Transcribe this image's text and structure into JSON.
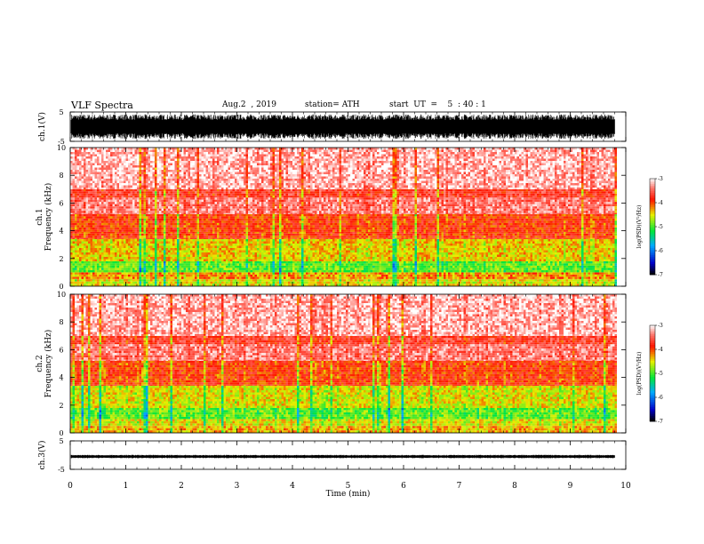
{
  "header": {
    "title": "VLF Spectra",
    "date": "Aug.2  , 2019",
    "station": "station= ATH",
    "start": "start  UT  =    5  : 40 : 1"
  },
  "chart_data": [
    {
      "type": "line",
      "panel": "ch1-waveform",
      "ylabel": "ch.1(V)",
      "ylim": [
        -5,
        5
      ],
      "yticks": [
        "5",
        "-5"
      ],
      "xlim": [
        0,
        10
      ],
      "data_extent_min": 9.8,
      "amplitude_v": 4.2
    },
    {
      "type": "heatmap",
      "panel": "ch1-spectrogram",
      "ylabel_channel": "ch.1",
      "ylabel": "Frequency  (kHz)",
      "ylim": [
        0,
        10
      ],
      "yticks": [
        "0",
        "2",
        "4",
        "6",
        "8",
        "10"
      ],
      "xlim": [
        0,
        10
      ],
      "data_extent_min": 9.8,
      "colorbar": {
        "label": "log(PSD)(V²/Hz)",
        "range": [
          -7,
          -3
        ],
        "ticks": [
          "-3",
          "-4",
          "-5",
          "-6",
          "-7"
        ]
      },
      "bands": [
        {
          "f": [
            0,
            0.5
          ],
          "level": -4.5
        },
        {
          "f": [
            0.5,
            1.0
          ],
          "level": -4.2
        },
        {
          "f": [
            1.0,
            1.8
          ],
          "level": -4.9
        },
        {
          "f": [
            1.8,
            3.4
          ],
          "level": -4.4
        },
        {
          "f": [
            3.4,
            3.8
          ],
          "level": -3.9
        },
        {
          "f": [
            3.8,
            5.2
          ],
          "level": -3.9
        },
        {
          "f": [
            5.2,
            6.4
          ],
          "level": -3.4
        },
        {
          "f": [
            6.4,
            7.0
          ],
          "level": -3.7
        },
        {
          "f": [
            7.0,
            10.0
          ],
          "level": -3.2
        }
      ]
    },
    {
      "type": "heatmap",
      "panel": "ch2-spectrogram",
      "ylabel_channel": "ch.2",
      "ylabel": "Frequency  (kHz)",
      "ylim": [
        0,
        10
      ],
      "yticks": [
        "0",
        "2",
        "4",
        "6",
        "8",
        "10"
      ],
      "xlim": [
        0,
        10
      ],
      "data_extent_min": 9.8,
      "colorbar": {
        "label": "log(PSD)(V²/Hz)",
        "range": [
          -7,
          -3
        ],
        "ticks": [
          "-3",
          "-4",
          "-5",
          "-6",
          "-7"
        ]
      },
      "bands": [
        {
          "f": [
            0,
            0.5
          ],
          "level": -4.3
        },
        {
          "f": [
            0.5,
            1.0
          ],
          "level": -4.5
        },
        {
          "f": [
            1.0,
            1.8
          ],
          "level": -4.9
        },
        {
          "f": [
            1.8,
            3.4
          ],
          "level": -4.5
        },
        {
          "f": [
            3.4,
            3.8
          ],
          "level": -3.9
        },
        {
          "f": [
            3.8,
            5.2
          ],
          "level": -3.9
        },
        {
          "f": [
            5.2,
            6.4
          ],
          "level": -3.4
        },
        {
          "f": [
            6.4,
            7.0
          ],
          "level": -3.7
        },
        {
          "f": [
            7.0,
            10.0
          ],
          "level": -3.2
        }
      ]
    },
    {
      "type": "line",
      "panel": "ch3-waveform",
      "ylabel": "ch.3(V)",
      "ylim": [
        -5,
        5
      ],
      "yticks": [
        "5",
        "-5"
      ],
      "xlim": [
        0,
        10
      ],
      "xticks": [
        "0",
        "1",
        "2",
        "3",
        "4",
        "5",
        "6",
        "7",
        "8",
        "9",
        "10"
      ],
      "xlabel": "Time  (min)",
      "data_extent_min": 9.8,
      "offset_v": -0.5,
      "amplitude_v": 0.6
    }
  ]
}
